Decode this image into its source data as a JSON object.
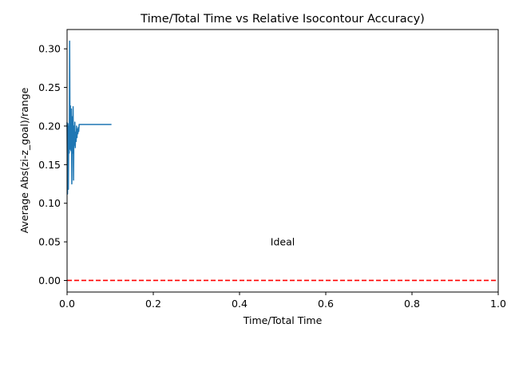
{
  "chart_data": {
    "type": "line",
    "title": "Time/Total Time vs Relative Isocontour Accuracy)",
    "xlabel": "Time/Total Time",
    "ylabel": "Average Abs(zi-z_goal)/range",
    "xlim": [
      0.0,
      1.0
    ],
    "ylim": [
      -0.015,
      0.325
    ],
    "xticks": [
      0.0,
      0.2,
      0.4,
      0.6,
      0.8,
      1.0
    ],
    "xtick_labels": [
      "0.0",
      "0.2",
      "0.4",
      "0.6",
      "0.8",
      "1.0"
    ],
    "yticks": [
      0.0,
      0.05,
      0.1,
      0.15,
      0.2,
      0.25,
      0.3
    ],
    "ytick_labels": [
      "0.00",
      "0.05",
      "0.10",
      "0.15",
      "0.20",
      "0.25",
      "0.30"
    ],
    "grid": false,
    "series": [
      {
        "color": "#1f77b4",
        "x": [
          0.0,
          0.001,
          0.002,
          0.003,
          0.004,
          0.005,
          0.006,
          0.007,
          0.008,
          0.009,
          0.01,
          0.011,
          0.012,
          0.013,
          0.014,
          0.015,
          0.016,
          0.017,
          0.018,
          0.019,
          0.02,
          0.021,
          0.022,
          0.023,
          0.024,
          0.025,
          0.026,
          0.027,
          0.028,
          0.03,
          0.04,
          0.06,
          0.08,
          0.103
        ],
        "y": [
          0.205,
          0.112,
          0.203,
          0.118,
          0.2,
          0.165,
          0.31,
          0.17,
          0.226,
          0.168,
          0.222,
          0.125,
          0.212,
          0.165,
          0.225,
          0.13,
          0.2,
          0.175,
          0.205,
          0.172,
          0.192,
          0.18,
          0.2,
          0.185,
          0.196,
          0.19,
          0.198,
          0.193,
          0.202,
          0.202,
          0.202,
          0.202,
          0.202,
          0.202
        ]
      }
    ],
    "reference_line": {
      "y": 0.0,
      "color": "#ff0000",
      "style": "dashed"
    },
    "annotations": [
      {
        "text": "Ideal",
        "x": 0.5,
        "y": 0.05,
        "color": "#ff0000"
      }
    ]
  }
}
